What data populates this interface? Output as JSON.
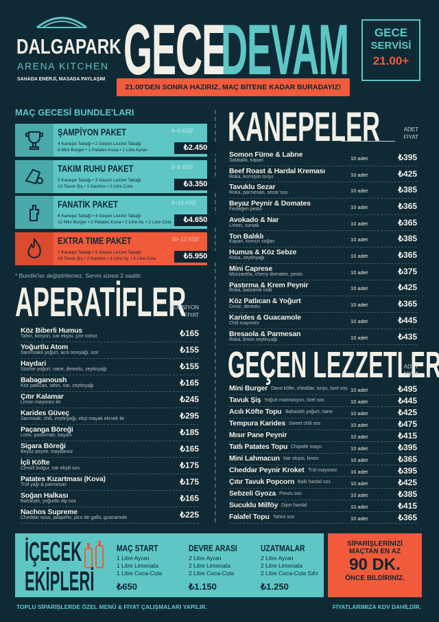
{
  "header": {
    "brand": "DALGAPARK",
    "subbrand": "ARENA KITCHEN",
    "tagline": "SAHADA ENERJİ, MASADA PAYLAŞIM",
    "title_1": "GECE",
    "title_2": "DEVAM",
    "badge": {
      "line_1": "GECE",
      "line_2": "SERVİSİ",
      "time": "21.00+"
    },
    "banner": "21.00'DEN SONRA HAZIRIZ, MAÇ BİTENE KADAR BURADAYIZ!"
  },
  "bundles": {
    "title": "MAÇ GECESİ BUNDLE'LARI",
    "items": [
      {
        "name": "ŞAMPİYON PAKET",
        "people": "4–5 KİŞİ",
        "lines": [
          "4 Kanepe Tabağı • 2 Geçen Lezzet Tabağı",
          "8 Mini Burger • 1 Patates Kova • 1 Litre Ayran"
        ],
        "price": "₺2.450"
      },
      {
        "name": "TAKIM RUHU PAKET",
        "people": "6–8 KİŞİ",
        "lines": [
          "5 Kanepe Tabağı • 3 Geçen Lezzet Tabağı",
          "10 Tavuk Şiş • 1 Nachos • 2 Litre Cola"
        ],
        "price": "₺3.350"
      },
      {
        "name": "FANATİK PAKET",
        "people": "8–10 KİŞİ",
        "lines": [
          "6 Kanepe Tabağı • 4 Geçen Lezzet Tabağı",
          "12 Mini Burger • 2 Patates Kova • 2 Litre Ay. • 2 Litre Cola"
        ],
        "price": "₺4.650"
      },
      {
        "name": "EXTRA TIME PAKET",
        "people": "10–12 KİŞİ",
        "lines": [
          "7 Kanepe Tabağı • 5 Geçen Lezzet Tabağı",
          "16 Tavuk Şiş • 2 Nachos • 3 Litre Ay. • 3 Litre Cola"
        ],
        "price": "₺5.950"
      }
    ],
    "note": "* Bundle'lar değiştirilemez. Servis süresi 2 saattir."
  },
  "aperatifler": {
    "title": "APERATİFLER",
    "column_1": "PORSİYON",
    "column_2": "FİYAT",
    "items": [
      {
        "name": "Köz Biberli Humus",
        "desc": "Tahin, kimyon, nar ekşisi, çıtır nohut",
        "price": "₺165"
      },
      {
        "name": "Yoğurtlu Atom",
        "desc": "Sarımsaklı yoğurt, acılı tereyağı, isot",
        "price": "₺155"
      },
      {
        "name": "Haydari",
        "desc": "Süzme yoğurt, nane, dereotu, zeytinyağı",
        "price": "₺155"
      },
      {
        "name": "Babaganoush",
        "desc": "Köz patlıcan, tahin, nar, zeytinyağı",
        "price": "₺165"
      },
      {
        "name": "Çıtır Kalamar",
        "desc": "Limon mayonez ile",
        "price": "₺245"
      },
      {
        "name": "Karides Güveç",
        "desc": "Sarımsak, chili, zeytinyağı, ekşi mayalı ekmek ile",
        "price": "₺295"
      },
      {
        "name": "Paçanga Böreği",
        "desc": "Lorlu, pastırmalı, kaşarlı",
        "price": "₺185"
      },
      {
        "name": "Sigara Böreği",
        "desc": "Beyaz peynir, maydanoz",
        "price": "₺165"
      },
      {
        "name": "İçli Köfte",
        "desc": "Cevizli bulgur, nar ekşili sos",
        "price": "₺175"
      },
      {
        "name": "Patates Kızartması (Kova)",
        "desc": "Trüf yağı & parmesan",
        "price": "₺175"
      },
      {
        "name": "Soğan Halkası",
        "desc": "Baharatlı, yoğurtlu dip sos",
        "price": "₺165"
      },
      {
        "name": "Nachos Supreme",
        "desc": "Cheddar sosu, jalapeño, pico de gallo, guacamole",
        "price": "₺225"
      }
    ]
  },
  "kanepeler": {
    "title": "KANEPELER",
    "column_1": "ADET",
    "column_2": "FİYAT",
    "items": [
      {
        "name": "Somon Füme & Labne",
        "desc": "Salatalık, kapari",
        "unit": "10 adet",
        "price": "₺395"
      },
      {
        "name": "Beef Roast & Hardal Kreması",
        "desc": "Roka, kornişon turşu",
        "unit": "10 adet",
        "price": "₺425"
      },
      {
        "name": "Tavuklu Sezar",
        "desc": "Roka, parmesan, sezar sos",
        "unit": "10 adet",
        "price": "₺385"
      },
      {
        "name": "Beyaz Peynir & Domates",
        "desc": "Fesleğen pesto",
        "unit": "10 adet",
        "price": "₺365"
      },
      {
        "name": "Avokado & Nar",
        "desc": "Limon, sumak",
        "unit": "10 adet",
        "price": "₺365"
      },
      {
        "name": "Ton Balıklı",
        "desc": "Kapari, kırmızı soğan",
        "unit": "10 adet",
        "price": "₺385"
      },
      {
        "name": "Humus & Köz Sebze",
        "desc": "Roka, zeytinyağı",
        "unit": "10 adet",
        "price": "₺365"
      },
      {
        "name": "Mini Caprese",
        "desc": "Mozzarella, cherry domates, pesto",
        "unit": "10 adet",
        "price": "₺375"
      },
      {
        "name": "Pastırma & Krem Peynir",
        "desc": "Roka, balzamik indir",
        "unit": "10 adet",
        "price": "₺425"
      },
      {
        "name": "Köz Patlıcan & Yoğurt",
        "desc": "Ceviz, dereotu",
        "unit": "10 adet",
        "price": "₺365"
      },
      {
        "name": "Karides & Guacamole",
        "desc": "Chili mayonez",
        "unit": "10 adet",
        "price": "₺445"
      },
      {
        "name": "Bresaola & Parmesan",
        "desc": "Roka, limon zeytinyağı",
        "unit": "10 adet",
        "price": "₺435"
      }
    ]
  },
  "gecen_lezzetler": {
    "title": "GEÇEN LEZZETLER",
    "column_1": "ADET",
    "column_2": "FİYAT",
    "items": [
      {
        "name": "Mini Burger",
        "desc": "Dana köfte, cheddar, turşu, özel sos",
        "unit": "10 adet",
        "price": "₺495"
      },
      {
        "name": "Tavuk Şiş",
        "desc": "Yoğurt marinasyon, özel sos",
        "unit": "10 adet",
        "price": "₺445"
      },
      {
        "name": "Acılı Köfte Topu",
        "desc": "Baharatlı yoğurt, nane",
        "unit": "10 adet",
        "price": "₺425"
      },
      {
        "name": "Tempura Karides",
        "desc": "Sweet chili sos",
        "unit": "10 adet",
        "price": "₺475"
      },
      {
        "name": "Mısır Pane Peynir",
        "desc": "",
        "unit": "10 adet",
        "price": "₺415"
      },
      {
        "name": "Tatlı Patates Topu",
        "desc": "Chipotle mayo",
        "unit": "10 adet",
        "price": "₺395"
      },
      {
        "name": "Mini Lahmacun",
        "desc": "Nar ekşisi, limon",
        "unit": "10 adet",
        "price": "₺365"
      },
      {
        "name": "Cheddar Peynir Kroket",
        "desc": "Trüf mayonez",
        "unit": "10 adet",
        "price": "₺395"
      },
      {
        "name": "Çıtır Tavuk Popcorn",
        "desc": "Ballı hardal sos",
        "unit": "10 adet",
        "price": "₺425"
      },
      {
        "name": "Sebzeli Gyoza",
        "desc": "Ponzu sos",
        "unit": "10 adet",
        "price": "₺385"
      },
      {
        "name": "Sucuklu Milföy",
        "desc": "Dijon hardal",
        "unit": "10 adet",
        "price": "₺415"
      },
      {
        "name": "Falafel Topu",
        "desc": "Tahini sos",
        "unit": "10 adet",
        "price": "₺365"
      }
    ]
  },
  "icecek": {
    "title_1": "İÇECEK",
    "title_2": "EKİPLERİ",
    "packages": [
      {
        "name": "MAÇ START",
        "lines": [
          "1 Litre Ayran",
          "1 Litre Limonata",
          "1 Litre Coca-Cola"
        ],
        "price": "₺650"
      },
      {
        "name": "DEVRE ARASI",
        "lines": [
          "2 Litre Ayran",
          "2 Litre Limonata",
          "2 Litre Coca-Cola"
        ],
        "price": "₺1.150"
      },
      {
        "name": "UZATMALAR",
        "lines": [
          "2 Litre Ayran",
          "2 Litre Limonata",
          "2 Litre Coca-Cola Sıfır"
        ],
        "price": "₺1.250"
      }
    ],
    "notice": {
      "line_1": "SİPARİŞLERİNİZİ",
      "line_2": "MAÇTAN EN AZ",
      "highlight": "90 DK.",
      "line_3": "ÖNCE BİLDİRİNİZ."
    }
  },
  "footer": {
    "left": "TOPLU SİPARİŞLERDE ÖZEL MENÜ & FİYAT ÇALIŞMALARI YAPILIR.",
    "right": "FİYATLARIMIZA KDV DAHİLDİR."
  }
}
